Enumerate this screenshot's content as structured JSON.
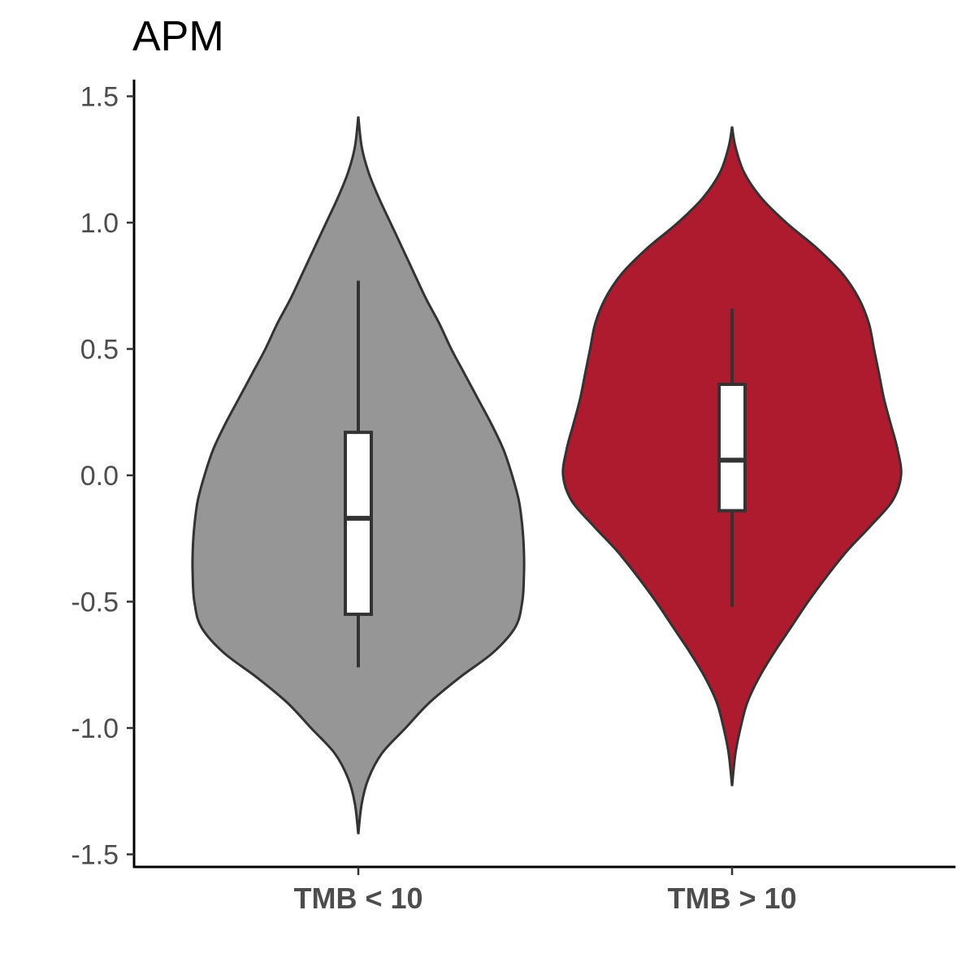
{
  "chart_data": {
    "type": "violin",
    "title": "APM",
    "xlabel": "",
    "ylabel": "",
    "ylim": [
      -1.55,
      1.6
    ],
    "yticks": [
      1.5,
      1.0,
      0.5,
      0.0,
      -0.5,
      -1.0,
      -1.5
    ],
    "ytick_labels": [
      "1.5",
      "1.0",
      "0.5",
      "0.0",
      "-0.5",
      "-1.0",
      "-1.5"
    ],
    "grid": false,
    "legend": "none",
    "categories": [
      "TMB < 10",
      "TMB > 10"
    ],
    "groups": [
      {
        "label": "TMB < 10",
        "color": "#969696",
        "min": -1.42,
        "max": 1.42,
        "box": {
          "q1": -0.55,
          "median": -0.17,
          "q3": 0.17,
          "whisker_low": -0.76,
          "whisker_high": 0.77
        },
        "density": [
          [
            1.42,
            0.0
          ],
          [
            1.3,
            0.02
          ],
          [
            1.2,
            0.06
          ],
          [
            1.1,
            0.12
          ],
          [
            1.0,
            0.19
          ],
          [
            0.9,
            0.26
          ],
          [
            0.8,
            0.33
          ],
          [
            0.7,
            0.4
          ],
          [
            0.6,
            0.48
          ],
          [
            0.5,
            0.55
          ],
          [
            0.4,
            0.63
          ],
          [
            0.3,
            0.71
          ],
          [
            0.2,
            0.79
          ],
          [
            0.1,
            0.86
          ],
          [
            0.0,
            0.91
          ],
          [
            -0.1,
            0.95
          ],
          [
            -0.2,
            0.97
          ],
          [
            -0.3,
            0.98
          ],
          [
            -0.4,
            0.98
          ],
          [
            -0.5,
            0.97
          ],
          [
            -0.6,
            0.93
          ],
          [
            -0.7,
            0.8
          ],
          [
            -0.8,
            0.6
          ],
          [
            -0.9,
            0.42
          ],
          [
            -1.0,
            0.28
          ],
          [
            -1.1,
            0.14
          ],
          [
            -1.2,
            0.06
          ],
          [
            -1.3,
            0.02
          ],
          [
            -1.42,
            0.0
          ]
        ]
      },
      {
        "label": "TMB > 10",
        "color": "#ae1a2e",
        "min": -1.23,
        "max": 1.38,
        "box": {
          "q1": -0.14,
          "median": 0.06,
          "q3": 0.36,
          "whisker_low": -0.52,
          "whisker_high": 0.66
        },
        "density": [
          [
            1.38,
            0.0
          ],
          [
            1.3,
            0.02
          ],
          [
            1.2,
            0.07
          ],
          [
            1.1,
            0.17
          ],
          [
            1.0,
            0.32
          ],
          [
            0.9,
            0.5
          ],
          [
            0.8,
            0.65
          ],
          [
            0.7,
            0.75
          ],
          [
            0.6,
            0.81
          ],
          [
            0.5,
            0.84
          ],
          [
            0.4,
            0.87
          ],
          [
            0.3,
            0.9
          ],
          [
            0.2,
            0.94
          ],
          [
            0.1,
            0.98
          ],
          [
            0.0,
            1.0
          ],
          [
            -0.1,
            0.95
          ],
          [
            -0.2,
            0.82
          ],
          [
            -0.3,
            0.68
          ],
          [
            -0.4,
            0.56
          ],
          [
            -0.5,
            0.45
          ],
          [
            -0.6,
            0.35
          ],
          [
            -0.7,
            0.25
          ],
          [
            -0.8,
            0.16
          ],
          [
            -0.9,
            0.09
          ],
          [
            -1.0,
            0.05
          ],
          [
            -1.1,
            0.02
          ],
          [
            -1.23,
            0.0
          ]
        ]
      }
    ]
  }
}
